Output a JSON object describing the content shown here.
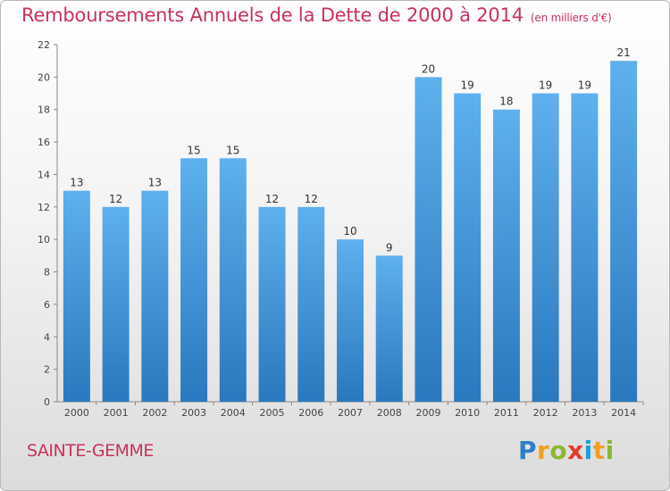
{
  "header": {
    "title": "Remboursements Annuels de la Dette de 2000 à 2014",
    "unit": "(en milliers d'€)"
  },
  "footer": {
    "city": "SAINTE-GEMME",
    "logo": [
      "P",
      "r",
      "o",
      "x",
      "i",
      "t",
      "i"
    ]
  },
  "colors": {
    "title": "#c8325a",
    "bar_light": "#5fb0ee",
    "bar_dark": "#2a78bd",
    "logo": [
      "#2f7fc6",
      "#f0a020",
      "#8ab832",
      "#e23c2c",
      "#1aa0d8",
      "#f0a020",
      "#8ab832"
    ]
  },
  "chart_data": {
    "type": "bar",
    "title": "Remboursements Annuels de la Dette de 2000 à 2014",
    "xlabel": "",
    "ylabel": "",
    "categories": [
      "2000",
      "2001",
      "2002",
      "2003",
      "2004",
      "2005",
      "2006",
      "2007",
      "2008",
      "2009",
      "2010",
      "2011",
      "2012",
      "2013",
      "2014"
    ],
    "values": [
      13,
      12,
      13,
      15,
      15,
      12,
      12,
      10,
      9,
      20,
      19,
      18,
      19,
      19,
      21
    ],
    "ylim": [
      0,
      22
    ],
    "yticks": [
      0,
      2,
      4,
      6,
      8,
      10,
      12,
      14,
      16,
      18,
      20,
      22
    ],
    "grid": false,
    "legend": "none"
  }
}
